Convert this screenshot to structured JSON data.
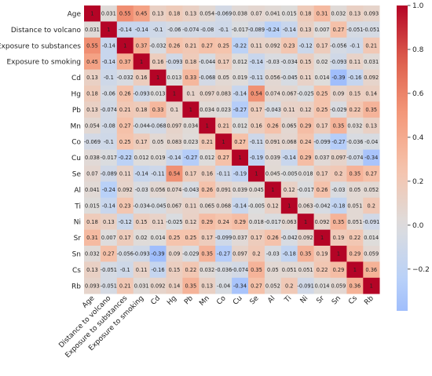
{
  "chart_data": {
    "type": "heatmap",
    "title": "",
    "labels": [
      "Age",
      "Distance to volcano",
      "Exposure to substances",
      "Exposure to smoking",
      "Cd",
      "Hg",
      "Pb",
      "Mn",
      "Co",
      "Cu",
      "Se",
      "Al",
      "Ti",
      "Ni",
      "Sr",
      "Sn",
      "Cs",
      "Rb"
    ],
    "values": [
      [
        1,
        0.031,
        0.55,
        0.45,
        0.13,
        0.18,
        0.13,
        0.054,
        -0.069,
        0.038,
        0.07,
        0.041,
        0.015,
        0.18,
        0.31,
        0.032,
        0.13,
        0.093
      ],
      [
        0.031,
        1,
        -0.14,
        -0.14,
        -0.1,
        -0.06,
        -0.074,
        -0.08,
        -0.1,
        -0.017,
        -0.089,
        -0.24,
        -0.14,
        0.13,
        0.007,
        0.27,
        -0.051,
        -0.051
      ],
      [
        0.55,
        -0.14,
        1,
        0.37,
        -0.032,
        0.26,
        0.21,
        0.27,
        0.25,
        -0.22,
        0.11,
        0.092,
        0.23,
        -0.12,
        0.17,
        -0.056,
        -0.1,
        0.21
      ],
      [
        0.45,
        -0.14,
        0.37,
        1,
        0.16,
        -0.093,
        0.18,
        -0.044,
        0.17,
        0.012,
        -0.14,
        -0.03,
        -0.034,
        0.15,
        0.02,
        -0.093,
        0.11,
        0.031
      ],
      [
        0.13,
        -0.1,
        -0.032,
        0.16,
        1,
        0.013,
        0.33,
        -0.068,
        0.05,
        0.019,
        -0.11,
        0.056,
        -0.045,
        0.11,
        0.014,
        -0.39,
        -0.16,
        0.092
      ],
      [
        0.18,
        -0.06,
        0.26,
        -0.093,
        0.013,
        1,
        0.1,
        0.097,
        0.083,
        -0.14,
        0.54,
        0.074,
        0.067,
        -0.025,
        0.25,
        0.09,
        0.15,
        0.14
      ],
      [
        0.13,
        -0.074,
        0.21,
        0.18,
        0.33,
        0.1,
        1,
        0.034,
        0.023,
        -0.27,
        0.17,
        -0.043,
        0.11,
        0.12,
        0.25,
        -0.029,
        0.22,
        0.35
      ],
      [
        0.054,
        -0.08,
        0.27,
        -0.044,
        -0.068,
        0.097,
        0.034,
        1,
        0.21,
        0.012,
        0.16,
        0.26,
        0.065,
        0.29,
        0.17,
        0.35,
        0.032,
        0.13
      ],
      [
        -0.069,
        -0.1,
        0.25,
        0.17,
        0.05,
        0.083,
        0.023,
        0.21,
        1,
        0.27,
        -0.11,
        0.091,
        0.068,
        0.24,
        -0.099,
        -0.27,
        -0.036,
        -0.04
      ],
      [
        0.038,
        -0.017,
        -0.22,
        0.012,
        0.019,
        -0.14,
        -0.27,
        0.012,
        0.27,
        1,
        -0.19,
        0.039,
        -0.14,
        0.29,
        0.037,
        0.097,
        -0.074,
        -0.34
      ],
      [
        0.07,
        -0.089,
        0.11,
        -0.14,
        -0.11,
        0.54,
        0.17,
        0.16,
        -0.11,
        -0.19,
        1,
        0.045,
        -0.005,
        0.018,
        0.17,
        0.2,
        0.35,
        0.27
      ],
      [
        0.041,
        -0.24,
        0.092,
        -0.03,
        0.056,
        0.074,
        -0.043,
        0.26,
        0.091,
        0.039,
        0.045,
        1,
        0.12,
        -0.017,
        0.26,
        -0.03,
        0.05,
        0.052
      ],
      [
        0.015,
        -0.14,
        0.23,
        -0.034,
        -0.045,
        0.067,
        0.11,
        0.065,
        0.068,
        -0.14,
        -0.005,
        0.12,
        1,
        0.063,
        -0.042,
        -0.18,
        0.051,
        0.2
      ],
      [
        0.18,
        0.13,
        -0.12,
        0.15,
        0.11,
        -0.025,
        0.12,
        0.29,
        0.24,
        0.29,
        0.018,
        -0.017,
        0.063,
        1,
        0.092,
        0.35,
        0.051,
        -0.091
      ],
      [
        0.31,
        0.007,
        0.17,
        0.02,
        0.014,
        0.25,
        0.25,
        0.17,
        -0.099,
        0.037,
        0.17,
        0.26,
        -0.042,
        0.092,
        1,
        0.19,
        0.22,
        0.014
      ],
      [
        0.032,
        0.27,
        -0.056,
        -0.093,
        -0.39,
        0.09,
        -0.029,
        0.35,
        -0.27,
        0.097,
        0.2,
        -0.03,
        -0.18,
        0.35,
        0.19,
        1,
        0.29,
        0.059
      ],
      [
        0.13,
        -0.051,
        -0.1,
        0.11,
        -0.16,
        0.15,
        0.22,
        0.032,
        -0.036,
        -0.074,
        0.35,
        0.05,
        0.051,
        0.051,
        0.22,
        0.29,
        1,
        0.36
      ],
      [
        0.093,
        -0.051,
        0.21,
        0.031,
        0.092,
        0.14,
        0.35,
        0.13,
        -0.04,
        -0.34,
        0.27,
        0.052,
        0.2,
        -0.091,
        0.014,
        0.059,
        0.36,
        1
      ]
    ],
    "colorbar": {
      "min": -0.39,
      "max": 1,
      "ticks": [
        1.0,
        0.8,
        0.6,
        0.4,
        0.2,
        0.0,
        -0.2
      ],
      "tick_labels": [
        "1.0",
        "0.8",
        "0.6",
        "0.4",
        "0.2",
        "0.0",
        "−0.2"
      ],
      "colormap": "coolwarm"
    }
  }
}
